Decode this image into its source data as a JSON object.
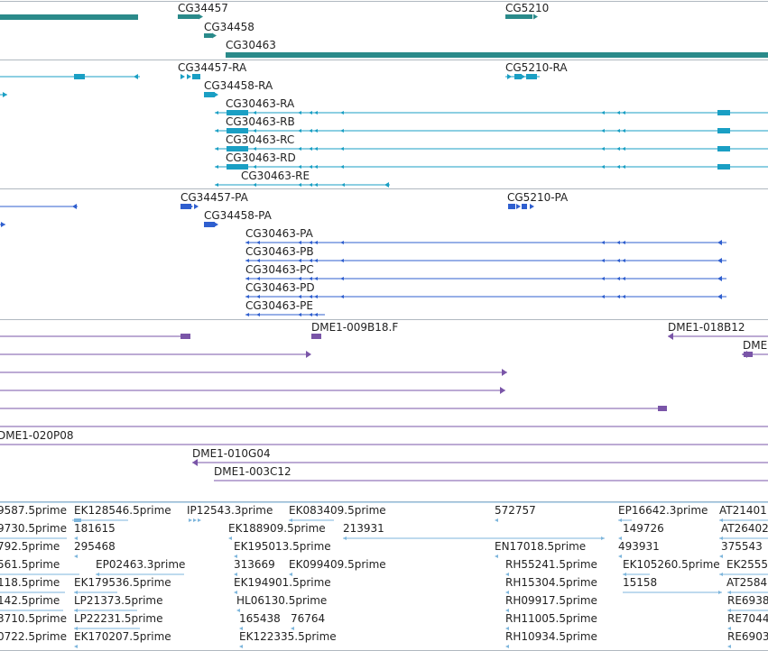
{
  "colors": {
    "gene": "#2a8a8a",
    "transcript": "#1a9fc4",
    "protein": "#2f5fcf",
    "clone": "#7a55a8",
    "est": "#7eb6dc",
    "separator": "#b0b8c0"
  },
  "tracks": {
    "genes": [
      "CG34457",
      "CG34458",
      "CG30463",
      "CG5210"
    ],
    "transcripts": [
      "CG34457-RA",
      "CG34458-RA",
      "CG30463-RA",
      "CG30463-RB",
      "CG30463-RC",
      "CG30463-RD",
      "CG30463-RE",
      "CG5210-RA"
    ],
    "proteins": [
      "CG34457-PA",
      "CG34458-PA",
      "CG30463-PA",
      "CG30463-PB",
      "CG30463-PC",
      "CG30463-PD",
      "CG30463-PE",
      "CG5210-PA"
    ],
    "clones": [
      "DME1-009B18.F",
      "DME1-018B12",
      "DME",
      "DME1-020P08",
      "DME1-010G04",
      "DME1-003C12"
    ],
    "ests": [
      "9587.5prime",
      "EK128546.5prime",
      "IP12543.3prime",
      "EK083409.5prime",
      "572757",
      "EP16642.3prime",
      "AT21401",
      "9730.5prime",
      "181615",
      "EK188909.5prime",
      "213931",
      "149726",
      "AT26402",
      "792.5prime",
      "295468",
      "EK195013.5prime",
      "EN17018.5prime",
      "493931",
      "375543",
      "561.5prime",
      "EP02463.3prime",
      "313669",
      "EK099409.5prime",
      "RH55241.5prime",
      "EK105260.5prime",
      "EK2555",
      "118.5prime",
      "EK179536.5prime",
      "EK194901.5prime",
      "RH15304.5prime",
      "15158",
      "AT2584",
      "142.5prime",
      "LP21373.5prime",
      "HL06130.5prime",
      "RH09917.5prime",
      "RE6938",
      "3710.5prime",
      "LP22231.5prime",
      "165438",
      "76764",
      "RH11005.5prime",
      "RE7044",
      "0722.5prime",
      "EK170207.5prime",
      "EK122335.5prime",
      "RH10934.5prime",
      "RE6903"
    ]
  }
}
